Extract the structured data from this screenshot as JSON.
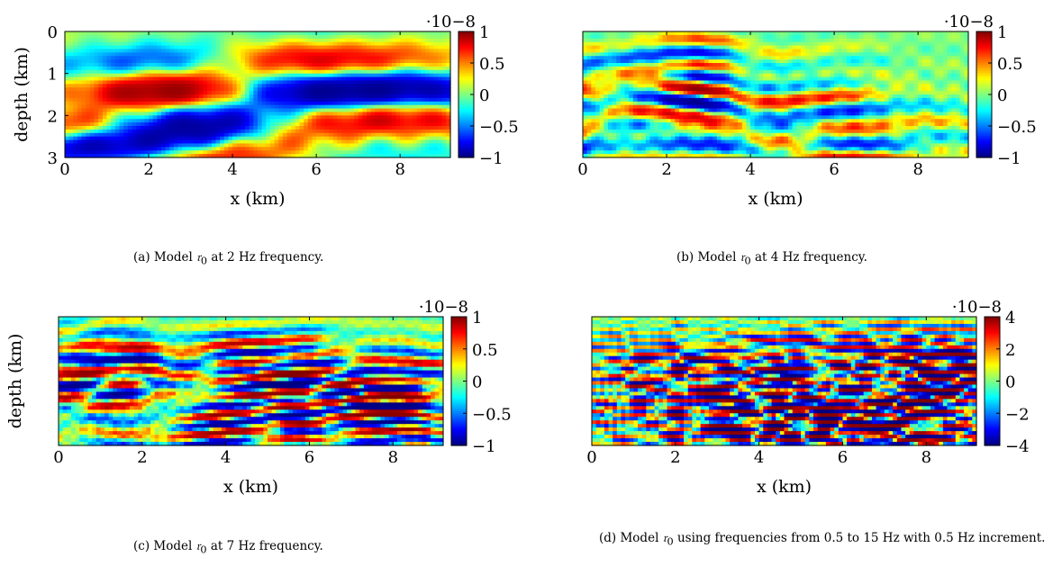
{
  "chart_data": [
    {
      "type": "heatmap",
      "title": "",
      "xlabel": "x (km)",
      "ylabel": "depth (km)",
      "xlim": [
        0,
        9.2
      ],
      "ylim": [
        3,
        0
      ],
      "xticks": [
        "0",
        "2",
        "4",
        "6",
        "8"
      ],
      "yticks": [
        "0",
        "1",
        "2",
        "3"
      ],
      "colorbar": {
        "ticks": [
          "1",
          "0.5",
          "0",
          "−0.5",
          "−1"
        ],
        "range": [
          -1,
          1
        ],
        "exponent": "·10−8"
      },
      "colormap": "jet",
      "frequency_hz": 2,
      "caption": {
        "label": "(a)",
        "text_before": "Model",
        "symbol": "𝔯",
        "subscript": "0",
        "text_after": "at 2 Hz frequency."
      }
    },
    {
      "type": "heatmap",
      "title": "",
      "xlabel": "x (km)",
      "ylabel": "",
      "xlim": [
        0,
        9.2
      ],
      "ylim": [
        3,
        0
      ],
      "xticks": [
        "0",
        "2",
        "4",
        "6",
        "8"
      ],
      "yticks": [],
      "colorbar": {
        "ticks": [
          "1",
          "0.5",
          "0",
          "−0.5",
          "−1"
        ],
        "range": [
          -1,
          1
        ],
        "exponent": "·10−8"
      },
      "colormap": "jet",
      "frequency_hz": 4,
      "caption": {
        "label": "(b)",
        "text_before": "Model",
        "symbol": "𝔯",
        "subscript": "0",
        "text_after": "at 4 Hz frequency."
      }
    },
    {
      "type": "heatmap",
      "title": "",
      "xlabel": "x (km)",
      "ylabel": "depth (km)",
      "xlim": [
        0,
        9.2
      ],
      "ylim": [
        3,
        0
      ],
      "xticks": [
        "0",
        "2",
        "4",
        "6",
        "8"
      ],
      "yticks": [],
      "colorbar": {
        "ticks": [
          "1",
          "0.5",
          "0",
          "−0.5",
          "−1"
        ],
        "range": [
          -1,
          1
        ],
        "exponent": "·10−8"
      },
      "colormap": "jet",
      "frequency_hz": 7,
      "caption": {
        "label": "(c)",
        "text_before": "Model",
        "symbol": "𝔯",
        "subscript": "0",
        "text_after": "at 7 Hz frequency."
      }
    },
    {
      "type": "heatmap",
      "title": "",
      "xlabel": "x (km)",
      "ylabel": "",
      "xlim": [
        0,
        9.2
      ],
      "ylim": [
        3,
        0
      ],
      "xticks": [
        "0",
        "2",
        "4",
        "6",
        "8"
      ],
      "yticks": [],
      "colorbar": {
        "ticks": [
          "4",
          "2",
          "0",
          "−2",
          "−4"
        ],
        "range": [
          -4,
          4
        ],
        "exponent": "·10−8"
      },
      "colormap": "jet",
      "frequency_hz": 15,
      "caption": {
        "label": "(d)",
        "text_before": "Model",
        "symbol": "𝔯",
        "subscript": "0",
        "text_after": "using frequencies from 0.5 to 15 Hz with 0.5 Hz increment."
      }
    }
  ]
}
